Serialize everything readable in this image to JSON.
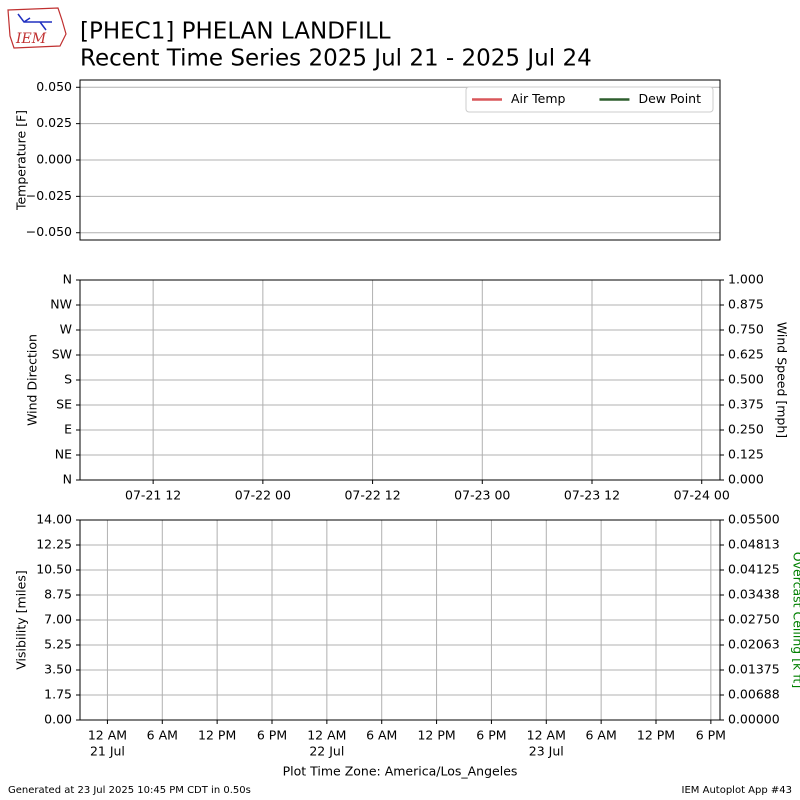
{
  "header": {
    "logo": "IEM",
    "title": "[PHEC1] PHELAN LANDFILL",
    "subtitle": "Recent Time Series 2025 Jul 21 - 2025 Jul 24"
  },
  "chart_data": [
    {
      "type": "line",
      "ylabel": "Temperature [F]",
      "ylim": [
        -0.055,
        0.055
      ],
      "yticks": [
        {
          "value": -0.05,
          "label": "−0.050"
        },
        {
          "value": -0.025,
          "label": "−0.025"
        },
        {
          "value": 0,
          "label": "0.000"
        },
        {
          "value": 0.025,
          "label": "0.025"
        },
        {
          "value": 0.05,
          "label": "0.050"
        }
      ],
      "grid": "y",
      "legend": "upper right",
      "series": [
        {
          "name": "Air Temp",
          "color": "#d9575a",
          "x": [],
          "values": []
        },
        {
          "name": "Dew Point",
          "color": "#2e5e2e",
          "x": [],
          "values": []
        }
      ]
    },
    {
      "type": "line",
      "ylabel": "Wind Direction",
      "y2label": "Wind Speed [mph]",
      "ylim": [
        0,
        360
      ],
      "yticks": [
        {
          "value": 0,
          "label": "N"
        },
        {
          "value": 45,
          "label": "NE"
        },
        {
          "value": 90,
          "label": "E"
        },
        {
          "value": 135,
          "label": "SE"
        },
        {
          "value": 180,
          "label": "S"
        },
        {
          "value": 225,
          "label": "SW"
        },
        {
          "value": 270,
          "label": "W"
        },
        {
          "value": 315,
          "label": "NW"
        },
        {
          "value": 360,
          "label": "N"
        }
      ],
      "y2lim": [
        0,
        1
      ],
      "y2ticks": [
        {
          "value": 0,
          "label": "0.000"
        },
        {
          "value": 0.125,
          "label": "0.125"
        },
        {
          "value": 0.25,
          "label": "0.250"
        },
        {
          "value": 0.375,
          "label": "0.375"
        },
        {
          "value": 0.5,
          "label": "0.500"
        },
        {
          "value": 0.625,
          "label": "0.625"
        },
        {
          "value": 0.75,
          "label": "0.750"
        },
        {
          "value": 0.875,
          "label": "0.875"
        },
        {
          "value": 1,
          "label": "1.000"
        }
      ],
      "xlim": [
        "07-21 04",
        "07-24 02"
      ],
      "xticks": [
        "07-21 12",
        "07-22 00",
        "07-22 12",
        "07-23 00",
        "07-23 12",
        "07-24 00"
      ],
      "grid": "both",
      "series": []
    },
    {
      "type": "line",
      "ylabel": "Visibility [miles]",
      "y2label": "Overcast Ceiling [k ft]",
      "y2color": "#008000",
      "xlabel": "Plot Time Zone: America/Los_Angeles",
      "ylim": [
        0,
        14
      ],
      "yticks": [
        {
          "value": 0,
          "label": "0.00"
        },
        {
          "value": 1.75,
          "label": "1.75"
        },
        {
          "value": 3.5,
          "label": "3.50"
        },
        {
          "value": 5.25,
          "label": "5.25"
        },
        {
          "value": 7,
          "label": "7.00"
        },
        {
          "value": 8.75,
          "label": "8.75"
        },
        {
          "value": 10.5,
          "label": "10.50"
        },
        {
          "value": 12.25,
          "label": "12.25"
        },
        {
          "value": 14,
          "label": "14.00"
        }
      ],
      "y2lim": [
        0,
        0.055
      ],
      "y2ticks": [
        {
          "value": 0,
          "label": "0.00000"
        },
        {
          "value": 0.006875,
          "label": "0.00688"
        },
        {
          "value": 0.01375,
          "label": "0.01375"
        },
        {
          "value": 0.020625,
          "label": "0.02063"
        },
        {
          "value": 0.0275,
          "label": "0.02750"
        },
        {
          "value": 0.034375,
          "label": "0.03438"
        },
        {
          "value": 0.04125,
          "label": "0.04125"
        },
        {
          "value": 0.048125,
          "label": "0.04813"
        },
        {
          "value": 0.055,
          "label": "0.05500"
        }
      ],
      "xlim": [
        "07-20 21",
        "07-23 19"
      ],
      "xticks": [
        {
          "value": "07-21 00",
          "label": "12 AM",
          "date": "21 Jul"
        },
        {
          "value": "07-21 06",
          "label": "6 AM"
        },
        {
          "value": "07-21 12",
          "label": "12 PM"
        },
        {
          "value": "07-21 18",
          "label": "6 PM"
        },
        {
          "value": "07-22 00",
          "label": "12 AM",
          "date": "22 Jul"
        },
        {
          "value": "07-22 06",
          "label": "6 AM"
        },
        {
          "value": "07-22 12",
          "label": "12 PM"
        },
        {
          "value": "07-22 18",
          "label": "6 PM"
        },
        {
          "value": "07-23 00",
          "label": "12 AM",
          "date": "23 Jul"
        },
        {
          "value": "07-23 06",
          "label": "6 AM"
        },
        {
          "value": "07-23 12",
          "label": "12 PM"
        },
        {
          "value": "07-23 18",
          "label": "6 PM"
        }
      ],
      "grid": "both",
      "series": []
    }
  ],
  "footer": {
    "left": "Generated at 23 Jul 2025 10:45 PM CDT in 0.50s",
    "right": "IEM Autoplot App #43"
  }
}
